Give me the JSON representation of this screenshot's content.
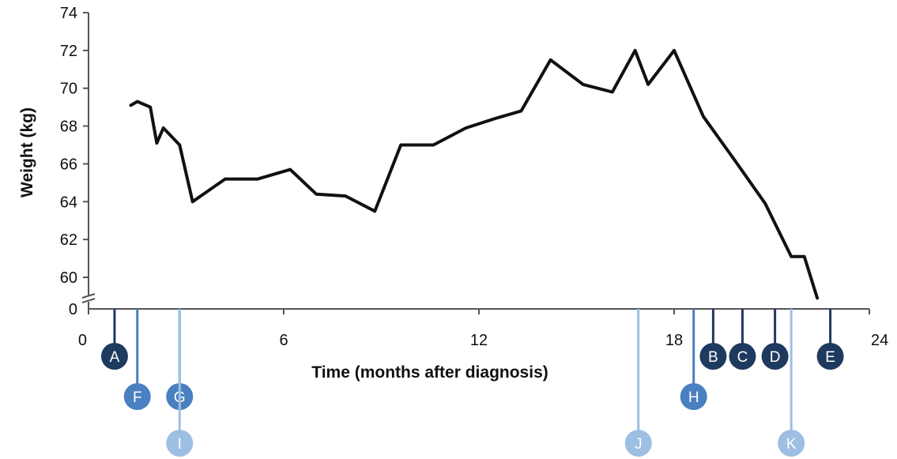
{
  "chart_data": {
    "type": "line",
    "title": "",
    "xlabel": "Time (months after diagnosis)",
    "ylabel": "Weight (kg)",
    "xlim": [
      0,
      24
    ],
    "ylim": [
      58,
      74
    ],
    "y_axis_break": true,
    "y_axis_origin_label": "0",
    "x_ticks": [
      0,
      6,
      12,
      18,
      24
    ],
    "y_ticks": [
      60,
      62,
      64,
      66,
      68,
      70,
      72,
      74
    ],
    "grid": false,
    "series": [
      {
        "color": "#111111",
        "points": [
          [
            1.3,
            69.1
          ],
          [
            1.5,
            69.3
          ],
          [
            1.9,
            69.0
          ],
          [
            2.1,
            67.1
          ],
          [
            2.3,
            67.9
          ],
          [
            2.8,
            67.0
          ],
          [
            3.2,
            64.0
          ],
          [
            4.2,
            65.2
          ],
          [
            5.2,
            65.2
          ],
          [
            6.2,
            65.7
          ],
          [
            7.0,
            64.4
          ],
          [
            7.9,
            64.3
          ],
          [
            8.8,
            63.5
          ],
          [
            9.6,
            67.0
          ],
          [
            10.6,
            67.0
          ],
          [
            11.6,
            67.9
          ],
          [
            12.5,
            68.4
          ],
          [
            13.3,
            68.8
          ],
          [
            14.2,
            71.5
          ],
          [
            15.2,
            70.2
          ],
          [
            16.1,
            69.8
          ],
          [
            16.8,
            72.0
          ],
          [
            17.2,
            70.2
          ],
          [
            18.0,
            72.0
          ],
          [
            18.9,
            68.5
          ],
          [
            19.9,
            66.1
          ],
          [
            20.8,
            63.9
          ],
          [
            21.6,
            61.1
          ],
          [
            22.0,
            61.1
          ],
          [
            22.4,
            58.9
          ]
        ]
      }
    ],
    "events": [
      {
        "label": "A",
        "x": 0.8,
        "row": 1,
        "color": "#1f3a5f"
      },
      {
        "label": "F",
        "x": 1.5,
        "row": 2,
        "color": "#4a7fc1"
      },
      {
        "label": "G",
        "x": 2.8,
        "row": 2,
        "color": "#4a7fc1"
      },
      {
        "label": "I",
        "x": 2.8,
        "row": 3,
        "color": "#9dbfe3"
      },
      {
        "label": "J",
        "x": 16.9,
        "row": 3,
        "color": "#9dbfe3"
      },
      {
        "label": "H",
        "x": 18.6,
        "row": 2,
        "color": "#4a7fc1"
      },
      {
        "label": "B",
        "x": 19.2,
        "row": 1,
        "color": "#1f3a5f"
      },
      {
        "label": "C",
        "x": 20.1,
        "row": 1,
        "color": "#1f3a5f"
      },
      {
        "label": "D",
        "x": 21.1,
        "row": 1,
        "color": "#1f3a5f"
      },
      {
        "label": "K",
        "x": 21.6,
        "row": 3,
        "color": "#9dbfe3"
      },
      {
        "label": "E",
        "x": 22.8,
        "row": 1,
        "color": "#1f3a5f"
      }
    ]
  }
}
